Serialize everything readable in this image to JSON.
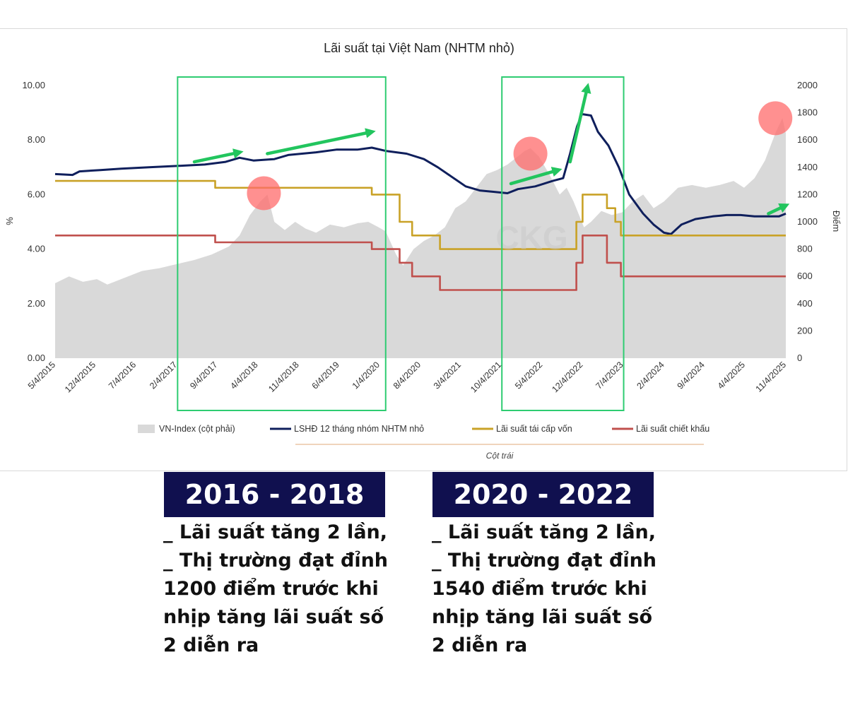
{
  "chart_data": {
    "type": "line",
    "title": "Lãi suất tại Việt Nam (NHTM nhỏ)",
    "ylabel_left": "%",
    "ylabel_right": "Điểm",
    "ylim_left": [
      0,
      10
    ],
    "ylim_right": [
      0,
      2000
    ],
    "y_ticks_left": [
      "0.00",
      "2.00",
      "4.00",
      "6.00",
      "8.00",
      "10.00"
    ],
    "y_ticks_right": [
      "0",
      "200",
      "400",
      "600",
      "800",
      "1000",
      "1200",
      "1400",
      "1600",
      "1800",
      "2000"
    ],
    "x_range": [
      2015.25,
      2025.75
    ],
    "x_ticks": [
      {
        "label": "5/4/2015",
        "t": 2015.26
      },
      {
        "label": "12/4/2015",
        "t": 2015.84
      },
      {
        "label": "7/4/2016",
        "t": 2016.42
      },
      {
        "label": "2/4/2017",
        "t": 2017.01
      },
      {
        "label": "9/4/2017",
        "t": 2017.59
      },
      {
        "label": "4/4/2018",
        "t": 2018.17
      },
      {
        "label": "11/4/2018",
        "t": 2018.76
      },
      {
        "label": "6/4/2019",
        "t": 2019.34
      },
      {
        "label": "1/4/2020",
        "t": 2019.92
      },
      {
        "label": "8/4/2020",
        "t": 2020.51
      },
      {
        "label": "3/4/2021",
        "t": 2021.09
      },
      {
        "label": "10/4/2021",
        "t": 2021.67
      },
      {
        "label": "5/4/2022",
        "t": 2022.26
      },
      {
        "label": "12/4/2022",
        "t": 2022.84
      },
      {
        "label": "7/4/2023",
        "t": 2023.42
      },
      {
        "label": "2/4/2024",
        "t": 2024.01
      },
      {
        "label": "9/4/2024",
        "t": 2024.59
      },
      {
        "label": "4/4/2025",
        "t": 2025.17
      },
      {
        "label": "11/4/2025",
        "t": 2025.76
      }
    ],
    "series": [
      {
        "name": "VN-Index (cột phải)",
        "axis": "right",
        "kind": "area",
        "color": "#d9d9d9",
        "points": [
          [
            2015.25,
            550
          ],
          [
            2015.45,
            600
          ],
          [
            2015.65,
            560
          ],
          [
            2015.85,
            580
          ],
          [
            2016.0,
            540
          ],
          [
            2016.25,
            590
          ],
          [
            2016.5,
            640
          ],
          [
            2016.75,
            660
          ],
          [
            2017.0,
            690
          ],
          [
            2017.25,
            720
          ],
          [
            2017.5,
            760
          ],
          [
            2017.75,
            820
          ],
          [
            2017.9,
            900
          ],
          [
            2018.05,
            1050
          ],
          [
            2018.2,
            1150
          ],
          [
            2018.3,
            1200
          ],
          [
            2018.4,
            1000
          ],
          [
            2018.55,
            940
          ],
          [
            2018.7,
            1000
          ],
          [
            2018.85,
            950
          ],
          [
            2019.0,
            920
          ],
          [
            2019.2,
            980
          ],
          [
            2019.4,
            960
          ],
          [
            2019.6,
            990
          ],
          [
            2019.75,
            1000
          ],
          [
            2019.9,
            960
          ],
          [
            2020.0,
            930
          ],
          [
            2020.15,
            760
          ],
          [
            2020.25,
            680
          ],
          [
            2020.4,
            800
          ],
          [
            2020.55,
            860
          ],
          [
            2020.7,
            900
          ],
          [
            2020.85,
            960
          ],
          [
            2021.0,
            1100
          ],
          [
            2021.15,
            1150
          ],
          [
            2021.3,
            1250
          ],
          [
            2021.45,
            1350
          ],
          [
            2021.6,
            1380
          ],
          [
            2021.75,
            1420
          ],
          [
            2021.9,
            1480
          ],
          [
            2022.0,
            1520
          ],
          [
            2022.08,
            1540
          ],
          [
            2022.2,
            1480
          ],
          [
            2022.35,
            1350
          ],
          [
            2022.5,
            1200
          ],
          [
            2022.6,
            1250
          ],
          [
            2022.7,
            1150
          ],
          [
            2022.85,
            960
          ],
          [
            2022.95,
            1000
          ],
          [
            2023.1,
            1080
          ],
          [
            2023.25,
            1050
          ],
          [
            2023.4,
            1070
          ],
          [
            2023.55,
            1150
          ],
          [
            2023.7,
            1200
          ],
          [
            2023.85,
            1100
          ],
          [
            2024.0,
            1150
          ],
          [
            2024.2,
            1250
          ],
          [
            2024.4,
            1270
          ],
          [
            2024.6,
            1250
          ],
          [
            2024.8,
            1270
          ],
          [
            2025.0,
            1300
          ],
          [
            2025.15,
            1250
          ],
          [
            2025.3,
            1320
          ],
          [
            2025.45,
            1450
          ],
          [
            2025.6,
            1650
          ],
          [
            2025.7,
            1760
          ],
          [
            2025.75,
            1650
          ]
        ]
      },
      {
        "name": "LSHĐ 12 tháng nhóm NHTM nhỏ",
        "axis": "left",
        "kind": "line",
        "color": "#0f1f5c",
        "points": [
          [
            2015.25,
            6.75
          ],
          [
            2015.5,
            6.72
          ],
          [
            2015.6,
            6.85
          ],
          [
            2015.9,
            6.9
          ],
          [
            2016.2,
            6.95
          ],
          [
            2016.6,
            7.0
          ],
          [
            2017.0,
            7.05
          ],
          [
            2017.4,
            7.1
          ],
          [
            2017.7,
            7.2
          ],
          [
            2017.9,
            7.35
          ],
          [
            2018.1,
            7.25
          ],
          [
            2018.4,
            7.3
          ],
          [
            2018.6,
            7.45
          ],
          [
            2018.8,
            7.5
          ],
          [
            2019.0,
            7.55
          ],
          [
            2019.3,
            7.65
          ],
          [
            2019.6,
            7.65
          ],
          [
            2019.8,
            7.72
          ],
          [
            2020.0,
            7.6
          ],
          [
            2020.3,
            7.5
          ],
          [
            2020.55,
            7.3
          ],
          [
            2020.75,
            7.0
          ],
          [
            2020.95,
            6.65
          ],
          [
            2021.15,
            6.3
          ],
          [
            2021.35,
            6.15
          ],
          [
            2021.55,
            6.1
          ],
          [
            2021.75,
            6.05
          ],
          [
            2021.9,
            6.2
          ],
          [
            2022.15,
            6.3
          ],
          [
            2022.4,
            6.5
          ],
          [
            2022.55,
            6.6
          ],
          [
            2022.65,
            7.5
          ],
          [
            2022.75,
            8.5
          ],
          [
            2022.82,
            8.95
          ],
          [
            2022.95,
            8.9
          ],
          [
            2023.05,
            8.3
          ],
          [
            2023.2,
            7.8
          ],
          [
            2023.35,
            7.0
          ],
          [
            2023.5,
            6.0
          ],
          [
            2023.7,
            5.3
          ],
          [
            2023.85,
            4.9
          ],
          [
            2024.0,
            4.6
          ],
          [
            2024.1,
            4.55
          ],
          [
            2024.25,
            4.9
          ],
          [
            2024.45,
            5.1
          ],
          [
            2024.7,
            5.2
          ],
          [
            2024.9,
            5.25
          ],
          [
            2025.1,
            5.25
          ],
          [
            2025.3,
            5.2
          ],
          [
            2025.5,
            5.2
          ],
          [
            2025.65,
            5.2
          ],
          [
            2025.75,
            5.3
          ]
        ]
      },
      {
        "name": "Lãi suất tái cấp vốn",
        "axis": "left",
        "kind": "step",
        "color": "#c9a227",
        "points": [
          [
            2015.25,
            6.5
          ],
          [
            2017.55,
            6.5
          ],
          [
            2017.55,
            6.25
          ],
          [
            2019.8,
            6.25
          ],
          [
            2019.8,
            6.0
          ],
          [
            2020.2,
            6.0
          ],
          [
            2020.2,
            5.0
          ],
          [
            2020.38,
            5.0
          ],
          [
            2020.38,
            4.5
          ],
          [
            2020.78,
            4.5
          ],
          [
            2020.78,
            4.0
          ],
          [
            2022.74,
            4.0
          ],
          [
            2022.74,
            5.0
          ],
          [
            2022.83,
            5.0
          ],
          [
            2022.83,
            6.0
          ],
          [
            2023.18,
            6.0
          ],
          [
            2023.18,
            5.5
          ],
          [
            2023.3,
            5.5
          ],
          [
            2023.3,
            5.0
          ],
          [
            2023.38,
            5.0
          ],
          [
            2023.38,
            4.5
          ],
          [
            2025.75,
            4.5
          ]
        ]
      },
      {
        "name": "Lãi suất chiết khấu",
        "axis": "left",
        "kind": "step",
        "color": "#c0504d",
        "points": [
          [
            2015.25,
            4.5
          ],
          [
            2017.55,
            4.5
          ],
          [
            2017.55,
            4.25
          ],
          [
            2019.8,
            4.25
          ],
          [
            2019.8,
            4.0
          ],
          [
            2020.2,
            4.0
          ],
          [
            2020.2,
            3.5
          ],
          [
            2020.38,
            3.5
          ],
          [
            2020.38,
            3.0
          ],
          [
            2020.78,
            3.0
          ],
          [
            2020.78,
            2.5
          ],
          [
            2022.74,
            2.5
          ],
          [
            2022.74,
            3.5
          ],
          [
            2022.83,
            3.5
          ],
          [
            2022.83,
            4.5
          ],
          [
            2023.18,
            4.5
          ],
          [
            2023.18,
            3.5
          ],
          [
            2023.38,
            3.5
          ],
          [
            2023.38,
            3.0
          ],
          [
            2025.75,
            3.0
          ]
        ]
      }
    ],
    "legend": {
      "items": [
        {
          "label": "VN-Index (cột phải)",
          "swatch": "area",
          "color": "#d9d9d9"
        },
        {
          "label": "LSHĐ 12 tháng nhóm NHTM nhỏ",
          "swatch": "line",
          "color": "#0f1f5c"
        },
        {
          "label": "Lãi suất tái cấp vốn",
          "swatch": "line",
          "color": "#c9a227"
        },
        {
          "label": "Lãi suất chiết khấu",
          "swatch": "line",
          "color": "#c0504d"
        }
      ],
      "group_label": "Cột trái",
      "placement": "bottom"
    },
    "watermark": "CKG",
    "highlight_boxes": [
      {
        "t_start": 2017.01,
        "t_end": 2020.0,
        "color": "#2ecc71"
      },
      {
        "t_start": 2021.67,
        "t_end": 2023.42,
        "color": "#2ecc71"
      }
    ],
    "peak_markers": [
      {
        "t": 2018.25,
        "y_left": 6.05
      },
      {
        "t": 2022.08,
        "y_left": 7.5
      },
      {
        "t": 2025.6,
        "y_left": 8.8
      }
    ],
    "trend_arrows": [
      {
        "t1": 2017.25,
        "y1": 7.2,
        "t2": 2017.9,
        "y2": 7.55
      },
      {
        "t1": 2018.3,
        "y1": 7.5,
        "t2": 2019.8,
        "y2": 8.3
      },
      {
        "t1": 2021.8,
        "y1": 6.4,
        "t2": 2022.48,
        "y2": 6.9
      },
      {
        "t1": 2022.65,
        "y1": 7.2,
        "t2": 2022.9,
        "y2": 9.95
      },
      {
        "t1": 2025.5,
        "y1": 5.3,
        "t2": 2025.75,
        "y2": 5.6
      }
    ]
  },
  "panels": [
    {
      "heading": "2016 - 2018",
      "lines": [
        "_ Lãi suất tăng 2 lần,",
        "_ Thị trường đạt đỉnh",
        "1200 điểm trước khi",
        "nhịp tăng lãi suất số",
        "2 diễn ra"
      ]
    },
    {
      "heading": "2020 - 2022",
      "lines": [
        "_ Lãi suất tăng 2 lần,",
        "_ Thị trường đạt đỉnh",
        "1540 điểm trước khi",
        "nhịp tăng lãi suất số",
        "2 diễn ra"
      ]
    }
  ]
}
